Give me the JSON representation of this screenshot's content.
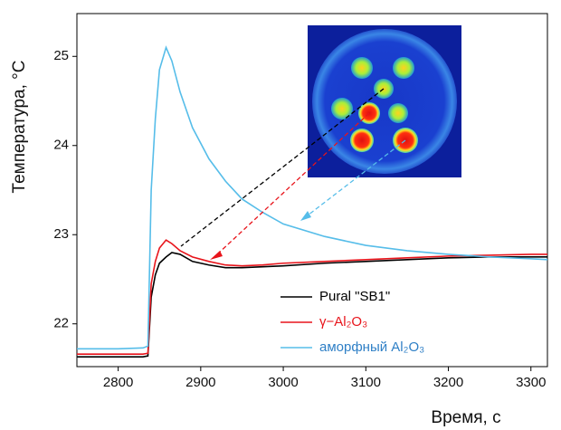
{
  "chart_data": {
    "type": "line",
    "x_label": "Время, с",
    "y_label": "Температура, °C",
    "x": [
      2750,
      2800,
      2830,
      2836,
      2840,
      2845,
      2850,
      2858,
      2865,
      2875,
      2890,
      2910,
      2930,
      2950,
      2975,
      3000,
      3050,
      3100,
      3150,
      3200,
      3250,
      3300,
      3320
    ],
    "series": [
      {
        "name": "Pural \"SB1\"",
        "color": "#000000",
        "values": [
          21.63,
          21.63,
          21.63,
          21.64,
          22.3,
          22.55,
          22.68,
          22.75,
          22.8,
          22.78,
          22.7,
          22.66,
          22.63,
          22.63,
          22.64,
          22.65,
          22.68,
          22.7,
          22.72,
          22.74,
          22.75,
          22.75,
          22.75
        ]
      },
      {
        "name": "γ−Al₂O₃",
        "color": "#e8141b",
        "values": [
          21.66,
          21.66,
          21.66,
          21.67,
          22.45,
          22.7,
          22.85,
          22.94,
          22.9,
          22.82,
          22.75,
          22.7,
          22.66,
          22.65,
          22.66,
          22.68,
          22.7,
          22.72,
          22.74,
          22.76,
          22.77,
          22.78,
          22.78
        ]
      },
      {
        "name": "аморфный Al₂O₃",
        "color": "#56bde9",
        "values": [
          21.72,
          21.72,
          21.73,
          21.75,
          23.5,
          24.3,
          24.85,
          25.1,
          24.95,
          24.6,
          24.2,
          23.85,
          23.6,
          23.4,
          23.25,
          23.12,
          22.98,
          22.88,
          22.82,
          22.78,
          22.75,
          22.73,
          22.72
        ]
      }
    ],
    "xlim": [
      2750,
      3320
    ],
    "ylim": [
      21.52,
      25.48
    ],
    "xticks": [
      2800,
      2900,
      3000,
      3100,
      3200,
      3300
    ],
    "yticks": [
      22,
      23,
      24,
      25
    ]
  }
}
